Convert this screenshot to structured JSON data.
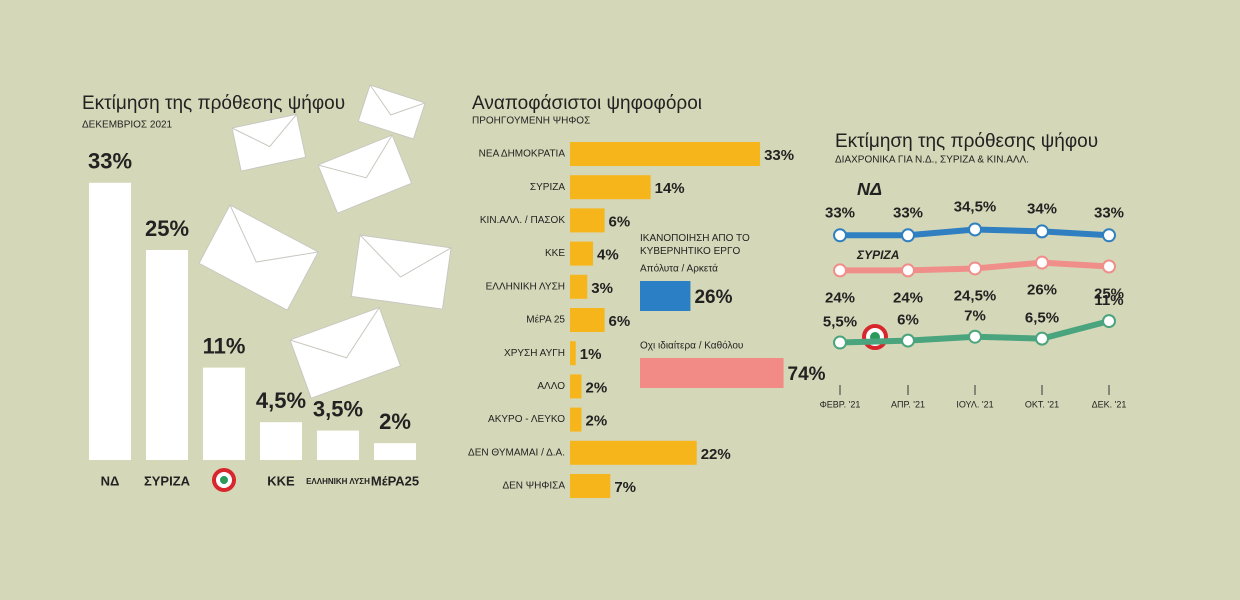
{
  "chart_data": [
    {
      "type": "bar",
      "title": "Εκτίμηση της πρόθεσης ψήφου",
      "subtitle": "ΔΕΚΕΜΒΡΙΟΣ 2021",
      "categories": [
        "ΝΔ",
        "ΣΥΡΙΖΑ",
        null,
        "ΚΚΕ",
        "ΕΛΛΗΝΙΚΗ ΛΥΣΗ",
        "ΜέΡΑ25"
      ],
      "values": [
        33,
        25,
        11,
        4.5,
        3.5,
        2
      ],
      "value_labels": [
        "33%",
        "25%",
        "11%",
        "4,5%",
        "3,5%",
        "2%"
      ],
      "color": "#ffffff",
      "ylim": [
        0,
        35
      ]
    },
    {
      "type": "hbar",
      "title": "Αναποφάσιστοι ψηφοφόροι",
      "subtitle": "ΠΡΟΗΓΟΥΜΕΝΗ ΨΗΦΟΣ",
      "categories": [
        "ΝΕΑ ΔΗΜΟΚΡΑΤΙΑ",
        "ΣΥΡΙΖΑ",
        "ΚΙΝ.ΑΛΛ. / ΠΑΣΟΚ",
        "ΚΚΕ",
        "ΕΛΛΗΝΙΚΗ ΛΥΣΗ",
        "ΜέΡΑ 25",
        "ΧΡΥΣΗ ΑΥΓΗ",
        "ΑΛΛΟ",
        "ΑΚΥΡΟ - ΛΕΥΚΟ",
        "ΔΕΝ ΘΥΜΑΜΑΙ / Δ.Α.",
        "ΔΕΝ ΨΗΦΙΣΑ"
      ],
      "values": [
        33,
        14,
        6,
        4,
        3,
        6,
        1,
        2,
        2,
        22,
        7
      ],
      "value_labels": [
        "33%",
        "14%",
        "6%",
        "4%",
        "3%",
        "6%",
        "1%",
        "2%",
        "2%",
        "22%",
        "7%"
      ],
      "color": "#f7b51c",
      "xlim": [
        0,
        35
      ]
    },
    {
      "type": "hbar",
      "title": "ΙΚΑΝΟΠΟΙΗΣΗ ΑΠΟ ΤΟ ΚΥΒΕΡΝΗΤΙΚΟ ΕΡΓΟ",
      "categories": [
        "Απόλυτα / Αρκετά",
        "Οχι ιδιαίτερα / Καθόλου"
      ],
      "values": [
        26,
        74
      ],
      "value_labels": [
        "26%",
        "74%"
      ],
      "colors": [
        "#2b7fc4",
        "#f28b86"
      ],
      "xlim": [
        0,
        100
      ]
    },
    {
      "type": "line",
      "title": "Εκτίμηση της πρόθεσης ψήφου",
      "subtitle": "ΔΙΑΧΡΟΝΙΚΑ ΓΙΑ Ν.Δ., ΣΥΡΙΖΑ & ΚΙΝ.ΑΛΛ.",
      "categories": [
        "ΦΕΒΡ. '21",
        "ΑΠΡ. '21",
        "ΙΟΥΛ. '21",
        "ΟΚΤ. '21",
        "ΔΕΚ. '21"
      ],
      "ylim": [
        0,
        40
      ],
      "series": [
        {
          "name": "ΝΔ",
          "color": "#2f7fc1",
          "values": [
            33,
            33,
            34.5,
            34,
            33
          ],
          "value_labels": [
            "33%",
            "33%",
            "34,5%",
            "34%",
            "33%"
          ]
        },
        {
          "name": "ΣΥΡΙΖΑ",
          "color": "#f08e8a",
          "values": [
            24,
            24,
            24.5,
            26,
            25
          ],
          "value_labels": [
            "24%",
            "24%",
            "24,5%",
            "26%",
            "25%"
          ]
        },
        {
          "color": "#4aa47d",
          "values": [
            5.5,
            6,
            7,
            6.5,
            11
          ],
          "value_labels": [
            "5,5%",
            "6%",
            "7%",
            "6,5%",
            "11%"
          ]
        }
      ]
    }
  ]
}
